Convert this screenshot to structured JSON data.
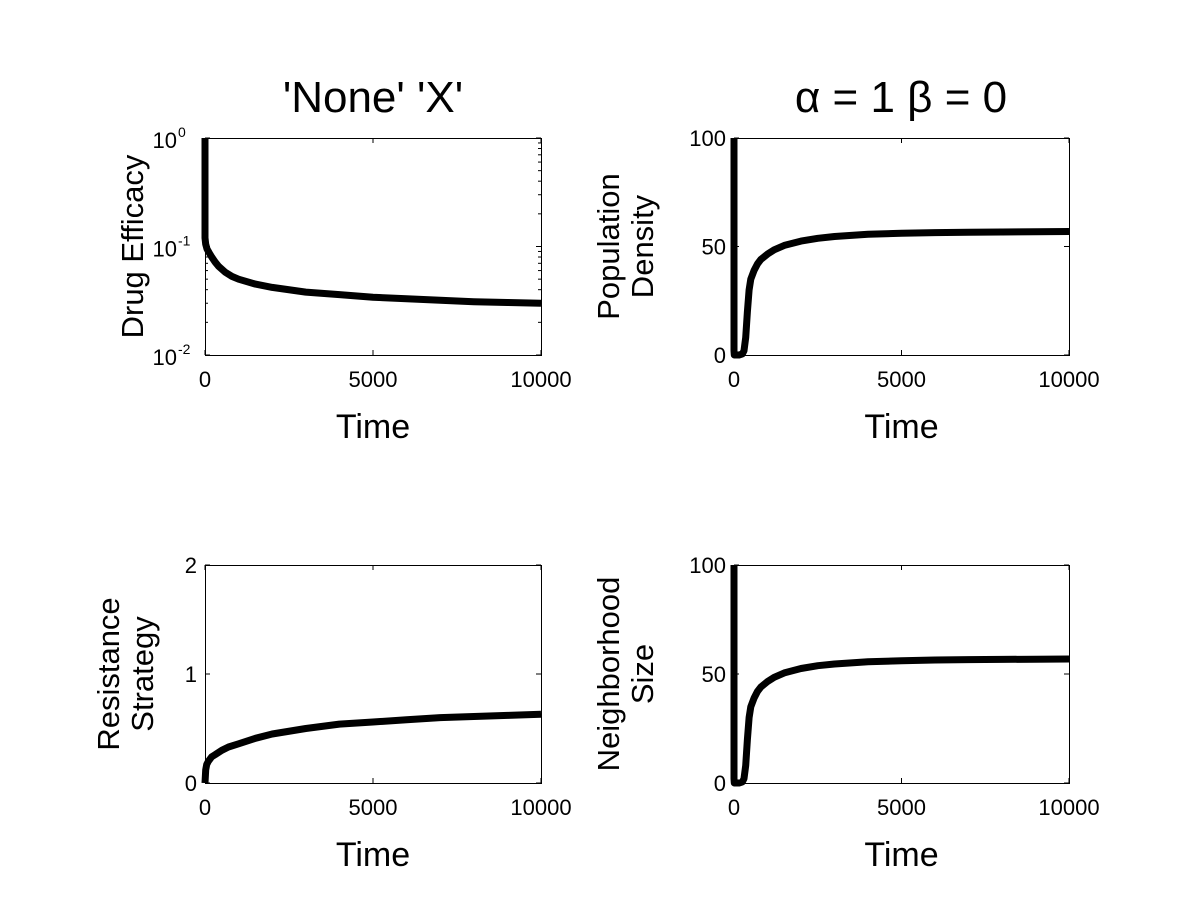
{
  "chart_data": [
    {
      "type": "line",
      "title": "'None' 'X'",
      "xlabel": "Time",
      "ylabel": "Drug Efficacy",
      "yscale": "log",
      "xlim": [
        0,
        10000
      ],
      "ylim": [
        0.01,
        1
      ],
      "xticks": [
        0,
        5000,
        10000
      ],
      "xtick_labels": [
        "0",
        "5000",
        "10000"
      ],
      "yticks": [
        {
          "value": 1,
          "base": "10",
          "exp": "0"
        },
        {
          "value": 0.1,
          "base": "10",
          "exp": "-1"
        },
        {
          "value": 0.01,
          "base": "10",
          "exp": "-2"
        }
      ],
      "grid": false,
      "series": [
        {
          "x": [
            0,
            1,
            20,
            60,
            120,
            200,
            300,
            400,
            600,
            800,
            1000,
            1500,
            2000,
            3000,
            4000,
            5000,
            6000,
            7000,
            8000,
            9000,
            10000
          ],
          "y": [
            1,
            0.12,
            0.105,
            0.095,
            0.088,
            0.08,
            0.072,
            0.066,
            0.058,
            0.053,
            0.05,
            0.045,
            0.042,
            0.038,
            0.036,
            0.034,
            0.033,
            0.032,
            0.031,
            0.0305,
            0.03
          ]
        }
      ]
    },
    {
      "type": "line",
      "title": "α = 1 β = 0",
      "xlabel": "Time",
      "ylabel_lines": [
        "Population",
        "Density"
      ],
      "xlim": [
        0,
        10000
      ],
      "ylim": [
        0,
        100
      ],
      "xticks": [
        0,
        5000,
        10000
      ],
      "xtick_labels": [
        "0",
        "5000",
        "10000"
      ],
      "yticks": [
        0,
        50,
        100
      ],
      "ytick_labels": [
        "0",
        "50",
        "100"
      ],
      "grid": false,
      "series": [
        {
          "x": [
            0,
            1,
            10,
            50,
            150,
            250,
            300,
            350,
            400,
            450,
            500,
            600,
            700,
            800,
            1000,
            1200,
            1500,
            2000,
            2500,
            3000,
            4000,
            5000,
            6000,
            7000,
            8000,
            9000,
            10000
          ],
          "y": [
            100,
            2,
            0,
            0,
            0,
            0.5,
            2,
            8,
            20,
            30,
            35,
            39,
            42,
            44,
            46.5,
            48.5,
            50.5,
            52.5,
            53.8,
            54.6,
            55.6,
            56.1,
            56.4,
            56.6,
            56.7,
            56.8,
            56.9
          ]
        }
      ]
    },
    {
      "type": "line",
      "xlabel": "Time",
      "ylabel_lines": [
        "Resistance",
        "Strategy"
      ],
      "xlim": [
        0,
        10000
      ],
      "ylim": [
        0,
        2
      ],
      "xticks": [
        0,
        5000,
        10000
      ],
      "xtick_labels": [
        "0",
        "5000",
        "10000"
      ],
      "yticks": [
        0,
        1,
        2
      ],
      "ytick_labels": [
        "0",
        "1",
        "2"
      ],
      "grid": false,
      "series": [
        {
          "x": [
            0,
            20,
            50,
            100,
            200,
            300,
            500,
            700,
            1000,
            1500,
            2000,
            3000,
            4000,
            5000,
            6000,
            7000,
            8000,
            9000,
            10000
          ],
          "y": [
            0,
            0.12,
            0.17,
            0.2,
            0.24,
            0.26,
            0.3,
            0.33,
            0.36,
            0.41,
            0.45,
            0.5,
            0.54,
            0.56,
            0.58,
            0.6,
            0.61,
            0.62,
            0.63
          ]
        }
      ]
    },
    {
      "type": "line",
      "xlabel": "Time",
      "ylabel_lines": [
        "Neighborhood",
        "Size"
      ],
      "xlim": [
        0,
        10000
      ],
      "ylim": [
        0,
        100
      ],
      "xticks": [
        0,
        5000,
        10000
      ],
      "xtick_labels": [
        "0",
        "5000",
        "10000"
      ],
      "yticks": [
        0,
        50,
        100
      ],
      "ytick_labels": [
        "0",
        "50",
        "100"
      ],
      "grid": false,
      "series": [
        {
          "x": [
            0,
            1,
            10,
            50,
            150,
            250,
            300,
            350,
            400,
            450,
            500,
            600,
            700,
            800,
            1000,
            1200,
            1500,
            2000,
            2500,
            3000,
            4000,
            5000,
            6000,
            7000,
            8000,
            9000,
            10000
          ],
          "y": [
            100,
            2,
            0,
            0,
            0,
            0.5,
            2,
            8,
            20,
            30,
            35,
            39,
            42,
            44,
            46.5,
            48.5,
            50.5,
            52.5,
            53.8,
            54.6,
            55.6,
            56.1,
            56.4,
            56.6,
            56.7,
            56.8,
            56.9
          ]
        }
      ]
    }
  ]
}
